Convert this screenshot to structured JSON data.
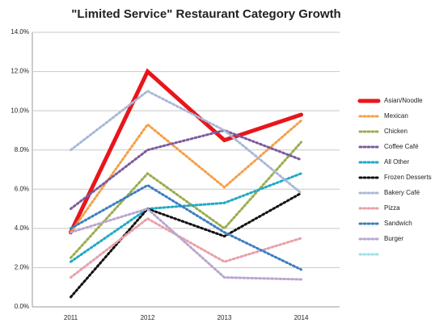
{
  "chart_data": {
    "type": "line",
    "title": "\"Limited Service\" Restaurant Category Growth",
    "categories": [
      "2011",
      "2012",
      "2013",
      "2014"
    ],
    "ylim": [
      0,
      14
    ],
    "yticks": [
      {
        "value": 0,
        "label": "0.0%"
      },
      {
        "value": 2,
        "label": "2.0%"
      },
      {
        "value": 4,
        "label": "4.0%"
      },
      {
        "value": 6,
        "label": "6.0%"
      },
      {
        "value": 8,
        "label": "8.0%"
      },
      {
        "value": 10,
        "label": "10.0%"
      },
      {
        "value": 12,
        "label": "12.0%"
      },
      {
        "value": 14,
        "label": "14.0%"
      }
    ],
    "grid": true,
    "legend": "right",
    "series": [
      {
        "name": "Asian/Noodle",
        "color": "#e8161b",
        "values": [
          3.8,
          12.0,
          8.5,
          9.8
        ]
      },
      {
        "name": "Mexican",
        "color": "#f5a04a",
        "values": [
          3.8,
          9.3,
          6.1,
          9.5
        ]
      },
      {
        "name": "Chicken",
        "color": "#9aad4d",
        "values": [
          2.5,
          6.8,
          4.0,
          8.4
        ]
      },
      {
        "name": "Coffee Café",
        "color": "#7d5b9e",
        "values": [
          5.0,
          8.0,
          9.0,
          7.5
        ]
      },
      {
        "name": "All Other",
        "color": "#1fa9c4",
        "values": [
          2.3,
          5.0,
          5.3,
          6.8
        ]
      },
      {
        "name": "Frozen Desserts",
        "color": "#111111",
        "values": [
          0.5,
          5.0,
          3.6,
          5.8
        ]
      },
      {
        "name": "Bakery Café",
        "color": "#a9b8d6",
        "values": [
          8.0,
          11.0,
          9.0,
          5.8
        ]
      },
      {
        "name": "Pizza",
        "color": "#e8a0a8",
        "values": [
          1.5,
          4.5,
          2.3,
          3.5
        ]
      },
      {
        "name": "Sandwich",
        "color": "#3c7fc0",
        "values": [
          4.0,
          6.2,
          3.8,
          1.9
        ]
      },
      {
        "name": "Burger",
        "color": "#b9a6cf",
        "values": [
          3.8,
          5.0,
          1.5,
          1.4
        ]
      }
    ]
  }
}
